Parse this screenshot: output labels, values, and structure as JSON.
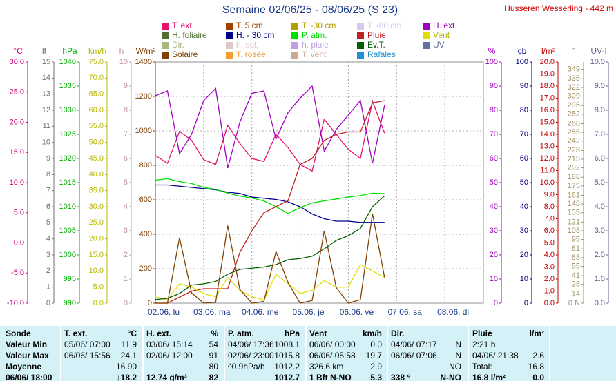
{
  "chart_data": {
    "type": "line",
    "title": "Semaine 02/06/25 - 08/06/25 (S 23)",
    "subtitle": "Husseren Wesserling - 442 m",
    "xlim": [
      0,
      6.8
    ],
    "xticks": [
      {
        "value": 0,
        "label": "02.06. lu"
      },
      {
        "value": 1,
        "label": "03.06. ma"
      },
      {
        "value": 2,
        "label": "04.06. me"
      },
      {
        "value": 3,
        "label": "05.06. je"
      },
      {
        "value": 4,
        "label": "06.06. ve"
      },
      {
        "value": 5,
        "label": "07.06. sa"
      },
      {
        "value": 6,
        "label": "08.06. di"
      }
    ],
    "grid": true,
    "x": [
      0,
      0.25,
      0.5,
      0.75,
      1,
      1.25,
      1.5,
      1.75,
      2,
      2.25,
      2.5,
      2.75,
      3,
      3.25,
      3.5,
      3.75,
      4,
      4.25,
      4.5,
      4.75
    ],
    "axes": [
      {
        "label": "°C",
        "color": "#d0007c",
        "side": "left",
        "lim": [
          -10,
          30
        ],
        "ticks": [
          {
            "value": -10,
            "label": "-10.0"
          },
          {
            "value": -5,
            "label": "-5.0"
          },
          {
            "value": 0,
            "label": "0.0"
          },
          {
            "value": 5,
            "label": "5.0"
          },
          {
            "value": 10,
            "label": "10.0"
          },
          {
            "value": 15,
            "label": "15.0"
          },
          {
            "value": 20,
            "label": "20.0"
          },
          {
            "value": 25,
            "label": "25.0"
          },
          {
            "value": 30,
            "label": "30.0"
          }
        ]
      },
      {
        "label": "lf",
        "color": "#707070",
        "side": "left",
        "lim": [
          0,
          15
        ],
        "ticks": [
          0,
          1,
          2,
          3,
          4,
          5,
          6,
          7,
          8,
          9,
          10,
          11,
          12,
          13,
          14,
          15
        ]
      },
      {
        "label": "hPa",
        "color": "#00b000",
        "side": "left",
        "lim": [
          990,
          1040
        ],
        "ticks": [
          990,
          995,
          1000,
          1005,
          1010,
          1015,
          1020,
          1025,
          1030,
          1035,
          1040
        ]
      },
      {
        "label": "km/h",
        "color": "#b8b800",
        "side": "left",
        "lim": [
          0,
          75
        ],
        "ticks": [
          {
            "value": 0,
            "label": "0.0"
          },
          {
            "value": 5,
            "label": "5.0"
          },
          {
            "value": 10,
            "label": "10.0"
          },
          {
            "value": 15,
            "label": "15.0"
          },
          {
            "value": 20,
            "label": "20.0"
          },
          {
            "value": 25,
            "label": "25.0"
          },
          {
            "value": 30,
            "label": "30.0"
          },
          {
            "value": 35,
            "label": "35.0"
          },
          {
            "value": 40,
            "label": "40.0"
          },
          {
            "value": 45,
            "label": "45.0"
          },
          {
            "value": 50,
            "label": "50.0"
          },
          {
            "value": 55,
            "label": "55.0"
          },
          {
            "value": 60,
            "label": "60.0"
          },
          {
            "value": 65,
            "label": "65.0"
          },
          {
            "value": 70,
            "label": "70.0"
          },
          {
            "value": 75,
            "label": "75.0"
          }
        ]
      },
      {
        "label": "h",
        "color": "#c09898",
        "side": "left",
        "lim": [
          0,
          10
        ],
        "ticks": [
          0,
          1,
          2,
          3,
          4,
          5,
          6,
          7,
          8,
          9,
          10
        ]
      },
      {
        "label": "W/m²",
        "color": "#804000",
        "side": "left",
        "lim": [
          0,
          1400
        ],
        "ticks": [
          0,
          200,
          400,
          600,
          800,
          1000,
          1200,
          1400
        ]
      },
      {
        "label": "%",
        "color": "#a000c0",
        "side": "right",
        "lim": [
          0,
          100
        ],
        "ticks": [
          0,
          10,
          20,
          30,
          40,
          50,
          60,
          70,
          80,
          90,
          100
        ]
      },
      {
        "label": "cb",
        "color": "#000080",
        "side": "right",
        "lim": [
          0,
          100
        ],
        "ticks": [
          0,
          10,
          20,
          30,
          40,
          50,
          60,
          70,
          80,
          90,
          100
        ]
      },
      {
        "label": "l/m²",
        "color": "#c00000",
        "side": "right",
        "lim": [
          0,
          20
        ],
        "ticks": [
          {
            "value": 0,
            "label": "0.0"
          },
          {
            "value": 1,
            "label": "1.0"
          },
          {
            "value": 2,
            "label": "2.0"
          },
          {
            "value": 3,
            "label": "3.0"
          },
          {
            "value": 4,
            "label": "4.0"
          },
          {
            "value": 5,
            "label": "5.0"
          },
          {
            "value": 6,
            "label": "6.0"
          },
          {
            "value": 7,
            "label": "7.0"
          },
          {
            "value": 8,
            "label": "8.0"
          },
          {
            "value": 9,
            "label": "9.0"
          },
          {
            "value": 10,
            "label": "10.0"
          },
          {
            "value": 11,
            "label": "11.0"
          },
          {
            "value": 12,
            "label": "12.0"
          },
          {
            "value": 13,
            "label": "13.0"
          },
          {
            "value": 14,
            "label": "14.0"
          },
          {
            "value": 15,
            "label": "15.0"
          },
          {
            "value": 16,
            "label": "16.0"
          },
          {
            "value": 17,
            "label": "17.0"
          },
          {
            "value": 18,
            "label": "18.0"
          },
          {
            "value": 19,
            "label": "19.0"
          },
          {
            "value": 20,
            "label": "20.0"
          }
        ]
      },
      {
        "label": "°",
        "color": "#a09060",
        "side": "right",
        "lim": [
          0,
          360
        ],
        "ticks": [
          {
            "value": 0,
            "label": "0 N"
          },
          14,
          28,
          41,
          55,
          68,
          81,
          95,
          108,
          121,
          135,
          148,
          161,
          175,
          188,
          202,
          215,
          228,
          242,
          255,
          268,
          282,
          295,
          309,
          322,
          335,
          349
        ]
      },
      {
        "label": "UV-I",
        "color": "#606090",
        "side": "right",
        "lim": [
          0,
          10
        ],
        "ticks": [
          {
            "value": 0,
            "label": "0.0"
          },
          {
            "value": 1,
            "label": "1.0"
          },
          {
            "value": 2,
            "label": "2.0"
          },
          {
            "value": 3,
            "label": "3.0"
          },
          {
            "value": 4,
            "label": "4.0"
          },
          {
            "value": 5,
            "label": "5.0"
          },
          {
            "value": 6,
            "label": "6.0"
          },
          {
            "value": 7,
            "label": "7.0"
          },
          {
            "value": 8,
            "label": "8.0"
          },
          {
            "value": 9,
            "label": "9.0"
          },
          {
            "value": 10,
            "label": "10.0"
          }
        ]
      }
    ],
    "series": [
      {
        "name": "T. ext.",
        "color": "#e8106a",
        "axis": "°C",
        "values": [
          14.5,
          13.2,
          18.5,
          17.0,
          13.8,
          13.0,
          19.5,
          16.5,
          14.0,
          13.5,
          18.0,
          15.8,
          13.0,
          11.9,
          20.5,
          18.0,
          15.5,
          14.0,
          23.5,
          18.2
        ]
      },
      {
        "name": "T. 5 cm",
        "color": "#a04000"
      },
      {
        "name": "T. -30 cm",
        "color": "#b0a000"
      },
      {
        "name": "T. -80 cm",
        "color": "#d8c8f0"
      },
      {
        "name": "H. ext.",
        "color": "#a000c0",
        "axis": "%",
        "values": [
          86,
          88,
          62,
          70,
          84,
          89,
          56,
          75,
          87,
          88,
          68,
          79,
          85,
          90,
          63,
          72,
          78,
          84,
          58,
          82
        ]
      },
      {
        "name": "H. foliaire",
        "color": "#507030"
      },
      {
        "name": "H. - 30 cm",
        "color": "#000090",
        "axis": "cb",
        "values": [
          49,
          49,
          48.5,
          48,
          47.5,
          47,
          46,
          45.5,
          44,
          43.5,
          43,
          42,
          40,
          37,
          35,
          34,
          34,
          33.5,
          33.5,
          33.5
        ]
      },
      {
        "name": "P. atm.",
        "color": "#00e000",
        "axis": "hPa",
        "values": [
          1015.5,
          1015.8,
          1015.2,
          1014.8,
          1014.0,
          1013.6,
          1012.8,
          1012.2,
          1011.8,
          1011.2,
          1010.0,
          1008.6,
          1009.8,
          1010.8,
          1011.2,
          1011.6,
          1012.0,
          1012.3,
          1012.8,
          1012.7
        ]
      },
      {
        "name": "Pluie",
        "color": "#c02020",
        "axis": "l/m²",
        "values": [
          0,
          0,
          0.5,
          1.0,
          1.2,
          1.2,
          1.2,
          4.2,
          6.0,
          7.5,
          8.0,
          8.5,
          11.5,
          12.0,
          13.5,
          14.0,
          14.2,
          14.2,
          16.6,
          16.8
        ]
      },
      {
        "name": "Vent",
        "color": "#e0e000",
        "axis": "km/h",
        "values": [
          2,
          1,
          6,
          5,
          3,
          2,
          8,
          4,
          2,
          1,
          9,
          6,
          3,
          4,
          7,
          5,
          5,
          12,
          10,
          8
        ]
      },
      {
        "name": "Dir.",
        "color": "#a8b880"
      },
      {
        "name": "h. sol.",
        "color": "#e0c8c8"
      },
      {
        "name": "h. pluie",
        "color": "#c0a0e0"
      },
      {
        "name": "Ev.T.",
        "color": "#006000",
        "axis": "l/m²",
        "values": [
          0.3,
          0.4,
          0.8,
          1.5,
          1.6,
          1.8,
          2.4,
          2.8,
          2.9,
          3.0,
          3.2,
          3.6,
          3.7,
          3.9,
          4.5,
          5.2,
          5.6,
          6.2,
          8.0,
          8.9
        ]
      },
      {
        "name": "UV",
        "color": "#6070a0"
      },
      {
        "name": "Solaire",
        "color": "#804000",
        "axis": "W/m²",
        "values": [
          0,
          0,
          380,
          60,
          0,
          5,
          450,
          80,
          0,
          10,
          300,
          120,
          0,
          15,
          420,
          90,
          0,
          20,
          520,
          150
        ]
      },
      {
        "name": "T. rosée",
        "color": "#f0a030"
      },
      {
        "name": "T. vent",
        "color": "#d0a890"
      },
      {
        "name": "Rafales",
        "color": "#2090d0"
      }
    ]
  },
  "table": {
    "header": [
      {
        "l": "Sonde"
      },
      {
        "l": "T. ext.",
        "r": "°C"
      },
      {
        "l": "H. ext.",
        "r": "%"
      },
      {
        "l": "P. atm.",
        "r": "hPa"
      },
      {
        "l": "Vent",
        "r": "km/h"
      },
      {
        "l": "Dir."
      },
      {
        "l": "Pluie",
        "r": "l/m²"
      }
    ],
    "rows": [
      [
        {
          "l": "Valeur Min"
        },
        {
          "l": "05/06/ 07:00",
          "r": "11.9"
        },
        {
          "l": "03/06/ 15:14",
          "r": "54"
        },
        {
          "l": "04/06/ 17:36",
          "r": "1008.1"
        },
        {
          "l": "06/06/ 00:00",
          "r": "0.0"
        },
        {
          "l": "04/06/ 07:17",
          "r": "N"
        },
        {
          "l": "2:21 h"
        }
      ],
      [
        {
          "l": "Valeur Max"
        },
        {
          "l": "06/06/ 15:56",
          "r": "24.1"
        },
        {
          "l": "02/06/ 12:00",
          "r": "91"
        },
        {
          "l": "02/06/ 23:00",
          "r": "1015.8"
        },
        {
          "l": "06/06/ 05:58",
          "r": "19.7"
        },
        {
          "l": "06/06/ 07:06",
          "r": "N"
        },
        {
          "l": "04/06/ 21:38",
          "r": "2.6"
        }
      ],
      [
        {
          "l": "Moyenne"
        },
        {
          "r": "16.90"
        },
        {
          "r": "80"
        },
        {
          "l": "^0.9hPa/h",
          "r": "1012.2"
        },
        {
          "l": "326.6 km",
          "r": "2.9"
        },
        {
          "r": "NO"
        },
        {
          "l": "Total:",
          "r": "16.8"
        }
      ],
      [
        {
          "l": "06/06/ 18:00"
        },
        {
          "r": "↓18.2"
        },
        {
          "l": "12.74 g/m³",
          "r": "82"
        },
        {
          "r": "1012.7"
        },
        {
          "l": "1 Bft N-NO",
          "r": "5.3"
        },
        {
          "l": "338 °",
          "r": "N-NO"
        },
        {
          "l": "16.8 l/m²",
          "r": "0.0"
        }
      ]
    ]
  }
}
